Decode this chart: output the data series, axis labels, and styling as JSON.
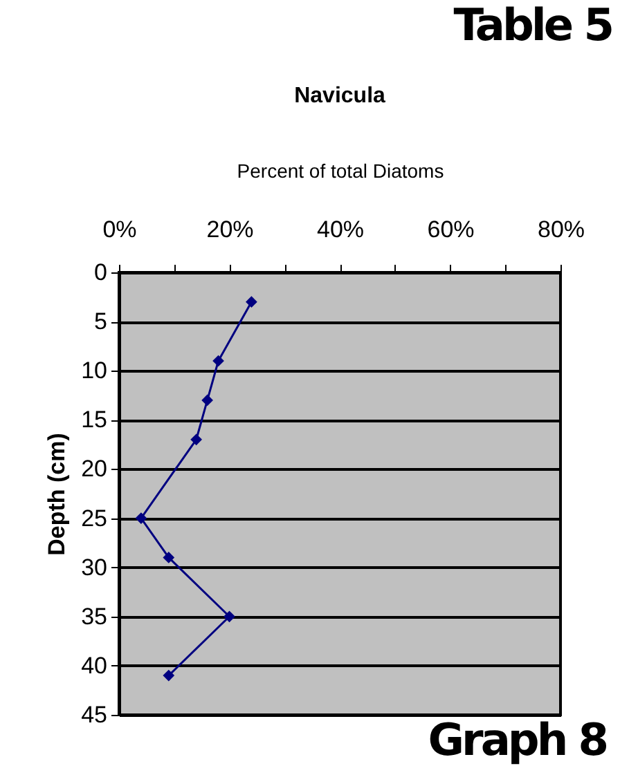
{
  "chart_data": {
    "type": "line",
    "title": "Navicula",
    "xlabel": "Percent of total Diatoms",
    "ylabel": "Depth (cm)",
    "annotations": [
      "Table 5",
      "Graph 8"
    ],
    "x": [
      24,
      18,
      16,
      14,
      4,
      9,
      20,
      9
    ],
    "series": [
      {
        "color": "#000080",
        "values": [
          3,
          9,
          13,
          17,
          25,
          29,
          35,
          41
        ]
      }
    ],
    "xlim": [
      0,
      80
    ],
    "xticks": [
      {
        "value": 0,
        "label": "0%"
      },
      {
        "value": 10,
        "label": null
      },
      {
        "value": 20,
        "label": "20%"
      },
      {
        "value": 30,
        "label": null
      },
      {
        "value": 40,
        "label": "40%"
      },
      {
        "value": 50,
        "label": null
      },
      {
        "value": 60,
        "label": "60%"
      },
      {
        "value": 70,
        "label": null
      },
      {
        "value": 80,
        "label": "80%"
      }
    ],
    "ylim": [
      45,
      0
    ],
    "yticks": [
      0,
      5,
      10,
      15,
      20,
      25,
      30,
      35,
      40,
      45
    ],
    "grid": "y",
    "marker": "diamond",
    "line_style": "solid",
    "legend": false
  }
}
